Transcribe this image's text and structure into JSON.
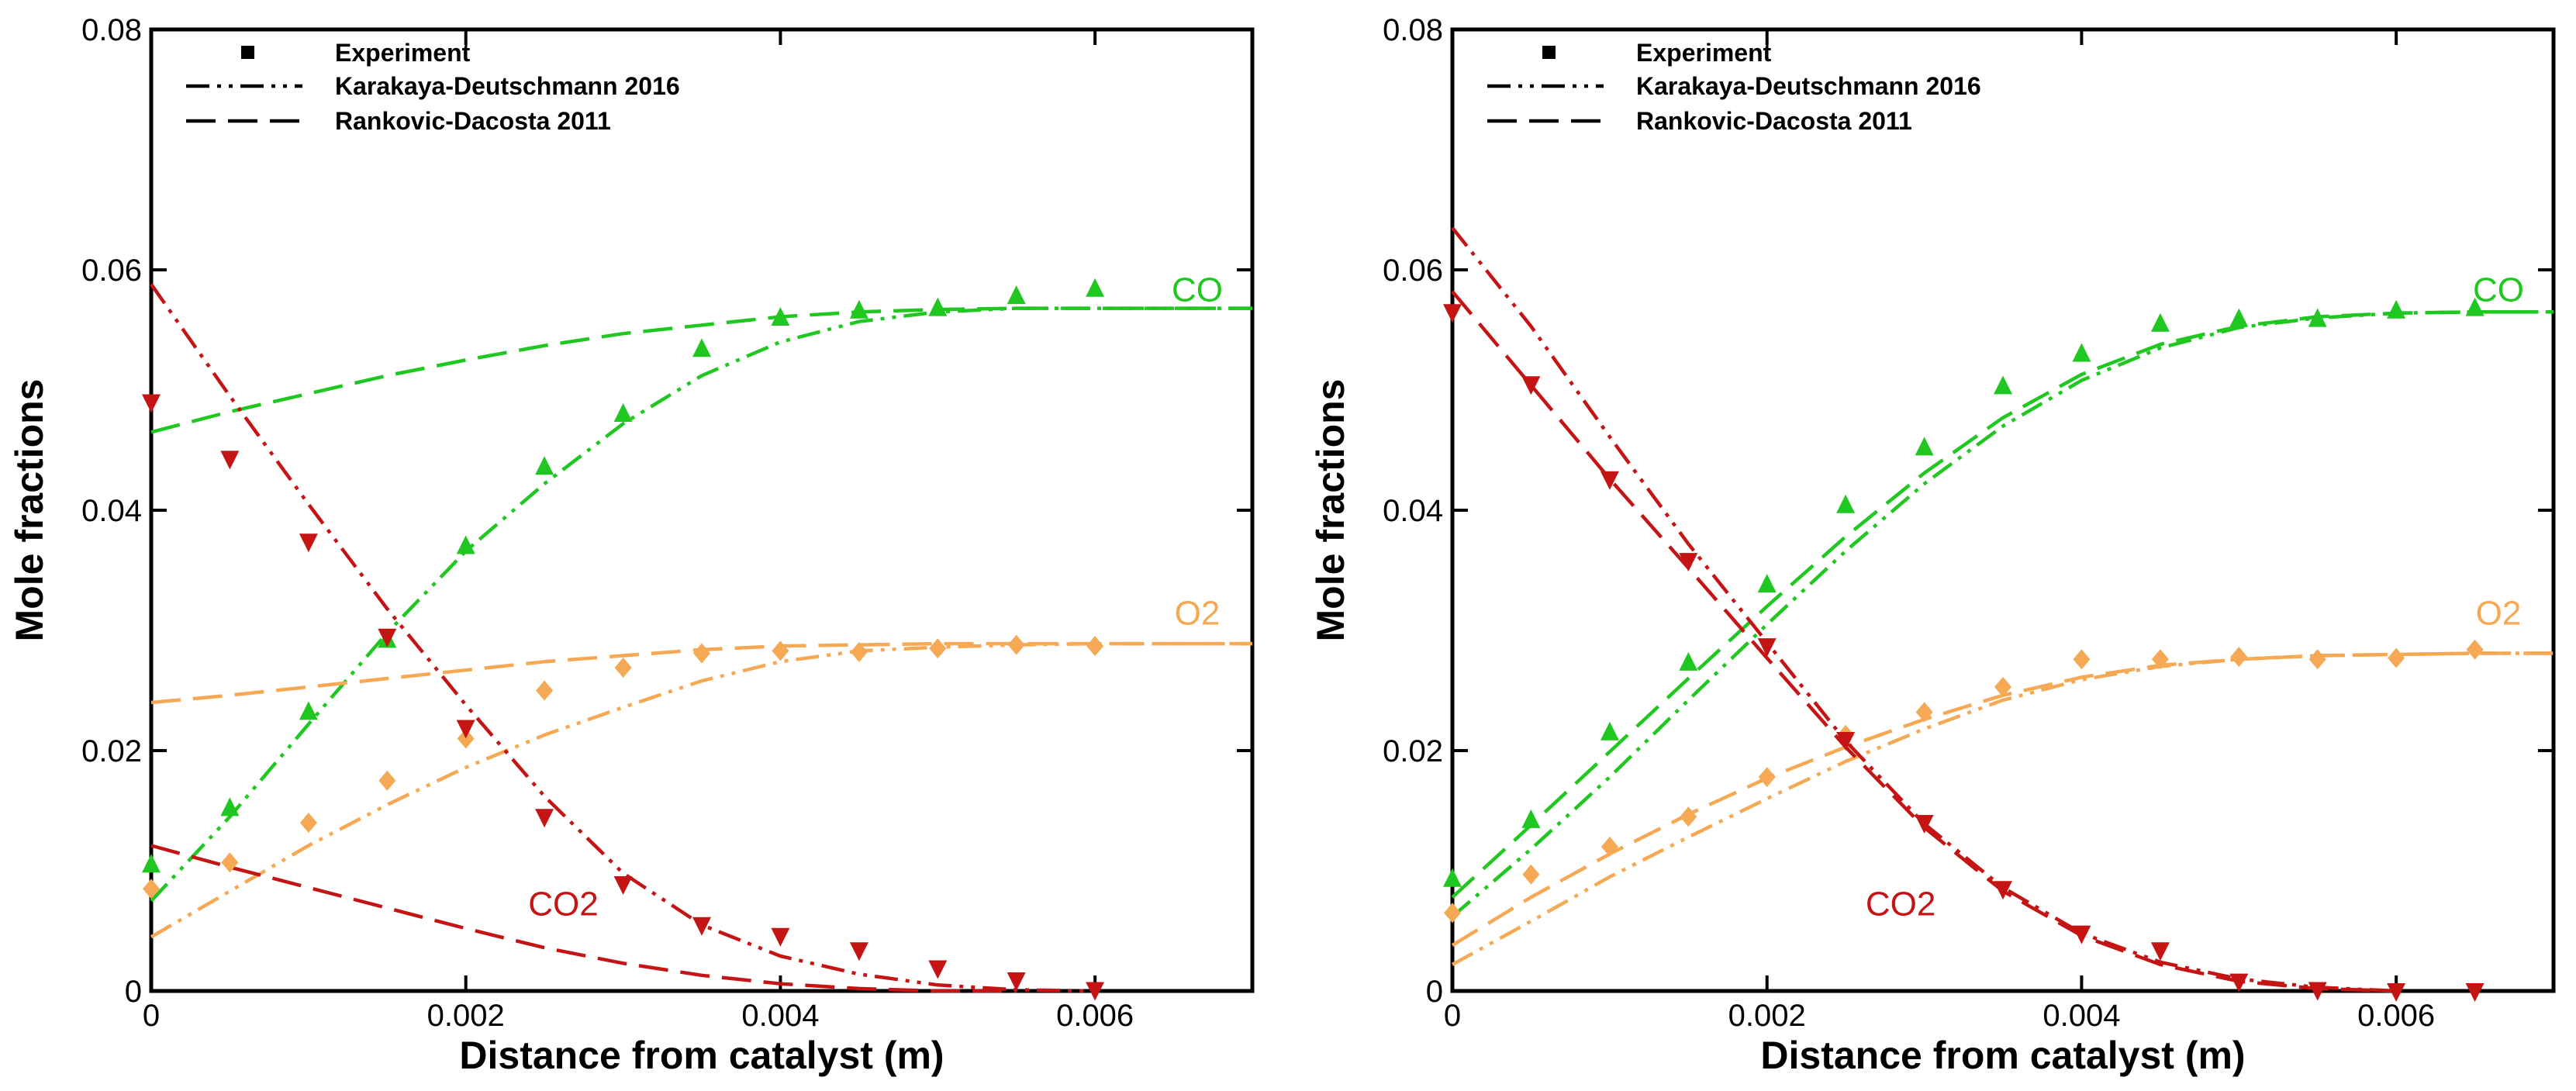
{
  "colors": {
    "co": "#21C721",
    "o2": "#F5A955",
    "co2": "#C41414",
    "axis": "#000000"
  },
  "chart_data": [
    {
      "type": "line",
      "panel": "left",
      "xlabel": "Distance from catalyst (m)",
      "ylabel": "Mole fractions",
      "xlim": [
        0,
        0.007
      ],
      "ylim": [
        0,
        0.08
      ],
      "xticks": [
        0,
        0.002,
        0.004,
        0.006
      ],
      "xtick_labels": [
        "0",
        "0.002",
        "0.004",
        "0.006"
      ],
      "yticks": [
        0,
        0.02,
        0.04,
        0.06,
        0.08
      ],
      "ytick_labels": [
        "0",
        "0.02",
        "0.04",
        "0.06",
        "0.08"
      ],
      "legend": {
        "position": "top-left",
        "entries": [
          {
            "label": "Experiment",
            "style": "marker"
          },
          {
            "label": "Karakaya-Deutschmann 2016",
            "style": "dash-dot-dot"
          },
          {
            "label": "Rankovic-Dacosta 2011",
            "style": "dash"
          }
        ]
      },
      "annotations": [
        {
          "text": "CO",
          "species": "co",
          "x": 0.00665,
          "y": 0.0574
        },
        {
          "text": "O2",
          "species": "o2",
          "x": 0.00665,
          "y": 0.0305
        },
        {
          "text": "CO2",
          "species": "co2",
          "x": 0.00262,
          "y": 0.0063
        }
      ],
      "series": [
        {
          "name": "CO Experiment",
          "species": "co",
          "kind": "experiment",
          "marker": "triangle-up",
          "x": [
            0,
            0.0005,
            0.001,
            0.0015,
            0.002,
            0.0025,
            0.003,
            0.0035,
            0.004,
            0.0045,
            0.005,
            0.0055,
            0.006
          ],
          "y": [
            0.0105,
            0.0152,
            0.0232,
            0.0292,
            0.037,
            0.0436,
            0.048,
            0.0534,
            0.056,
            0.0566,
            0.0568,
            0.0578,
            0.0584
          ]
        },
        {
          "name": "O2 Experiment",
          "species": "o2",
          "kind": "experiment",
          "marker": "diamond",
          "x": [
            0,
            0.0005,
            0.001,
            0.0015,
            0.002,
            0.0025,
            0.003,
            0.0035,
            0.004,
            0.0045,
            0.005,
            0.0055,
            0.006
          ],
          "y": [
            0.0085,
            0.0107,
            0.014,
            0.0175,
            0.021,
            0.025,
            0.0269,
            0.0281,
            0.0283,
            0.0282,
            0.0285,
            0.0288,
            0.0287
          ]
        },
        {
          "name": "CO2 Experiment",
          "species": "co2",
          "kind": "experiment",
          "marker": "triangle-down",
          "x": [
            0,
            0.0005,
            0.001,
            0.0015,
            0.002,
            0.0025,
            0.003,
            0.0035,
            0.004,
            0.0045,
            0.005,
            0.0055,
            0.006
          ],
          "y": [
            0.049,
            0.0443,
            0.0374,
            0.0295,
            0.0219,
            0.0145,
            0.0089,
            0.0055,
            0.0046,
            0.0034,
            0.0019,
            0.0009,
            0.0001
          ]
        },
        {
          "name": "CO Karakaya-Deutschmann 2016",
          "species": "co",
          "kind": "karakaya",
          "x": [
            0,
            0.0005,
            0.001,
            0.0015,
            0.002,
            0.0025,
            0.003,
            0.0035,
            0.004,
            0.0045,
            0.005,
            0.0055,
            0.006,
            0.0065,
            0.007
          ],
          "y": [
            0.0075,
            0.0145,
            0.0222,
            0.0298,
            0.0366,
            0.0422,
            0.0472,
            0.0512,
            0.054,
            0.0557,
            0.0565,
            0.0568,
            0.0568,
            0.0568,
            0.0568
          ]
        },
        {
          "name": "CO Rankovic-Dacosta 2011",
          "species": "co",
          "kind": "rankovic",
          "x": [
            0,
            0.0005,
            0.001,
            0.0015,
            0.002,
            0.0025,
            0.003,
            0.0035,
            0.004,
            0.0045,
            0.005,
            0.0055,
            0.006,
            0.0065,
            0.007
          ],
          "y": [
            0.0465,
            0.0482,
            0.0497,
            0.0512,
            0.0525,
            0.0537,
            0.0547,
            0.0554,
            0.0561,
            0.0565,
            0.0567,
            0.0568,
            0.0568,
            0.0568,
            0.0568
          ]
        },
        {
          "name": "O2 Karakaya-Deutschmann 2016",
          "species": "o2",
          "kind": "karakaya",
          "x": [
            0,
            0.0005,
            0.001,
            0.0015,
            0.002,
            0.0025,
            0.003,
            0.0035,
            0.004,
            0.0045,
            0.005,
            0.0055,
            0.006,
            0.0065,
            0.007
          ],
          "y": [
            0.0045,
            0.0083,
            0.0121,
            0.0155,
            0.0186,
            0.0213,
            0.0236,
            0.0258,
            0.0274,
            0.0283,
            0.0286,
            0.0288,
            0.0289,
            0.0289,
            0.0289
          ]
        },
        {
          "name": "O2 Rankovic-Dacosta 2011",
          "species": "o2",
          "kind": "rankovic",
          "x": [
            0,
            0.0005,
            0.001,
            0.0015,
            0.002,
            0.0025,
            0.003,
            0.0035,
            0.004,
            0.0045,
            0.005,
            0.0055,
            0.006,
            0.0065,
            0.007
          ],
          "y": [
            0.024,
            0.0246,
            0.0253,
            0.026,
            0.0267,
            0.0274,
            0.0279,
            0.0284,
            0.0287,
            0.0288,
            0.0289,
            0.0289,
            0.0289,
            0.0289,
            0.0289
          ]
        },
        {
          "name": "CO2 Karakaya-Deutschmann 2016",
          "species": "co2",
          "kind": "karakaya",
          "x": [
            0,
            0.0005,
            0.001,
            0.0015,
            0.002,
            0.0025,
            0.003,
            0.0035,
            0.004,
            0.0045,
            0.005,
            0.0055,
            0.006
          ],
          "y": [
            0.0588,
            0.0495,
            0.0405,
            0.0318,
            0.0238,
            0.0162,
            0.0098,
            0.0055,
            0.0029,
            0.0014,
            0.0005,
            0.0001,
            0.0
          ]
        },
        {
          "name": "CO2 Rankovic-Dacosta 2011",
          "species": "co2",
          "kind": "rankovic",
          "x": [
            0,
            0.0005,
            0.001,
            0.0015,
            0.002,
            0.0025,
            0.003,
            0.0035,
            0.004,
            0.0045,
            0.005,
            0.0055
          ],
          "y": [
            0.0121,
            0.0103,
            0.0086,
            0.0069,
            0.0052,
            0.0036,
            0.0023,
            0.0013,
            0.0006,
            0.0002,
            0.0,
            0.0
          ]
        }
      ]
    },
    {
      "type": "line",
      "panel": "right",
      "xlabel": "Distance from catalyst (m)",
      "ylabel": "Mole fractions",
      "xlim": [
        0,
        0.007
      ],
      "ylim": [
        0,
        0.08
      ],
      "xticks": [
        0,
        0.002,
        0.004,
        0.006
      ],
      "xtick_labels": [
        "0",
        "0.002",
        "0.004",
        "0.006"
      ],
      "yticks": [
        0,
        0.02,
        0.04,
        0.06,
        0.08
      ],
      "ytick_labels": [
        "0",
        "0.02",
        "0.04",
        "0.06",
        "0.08"
      ],
      "legend": {
        "position": "top-left",
        "entries": [
          {
            "label": "Experiment",
            "style": "marker"
          },
          {
            "label": "Karakaya-Deutschmann 2016",
            "style": "dash-dot-dot"
          },
          {
            "label": "Rankovic-Dacosta 2011",
            "style": "dash"
          }
        ]
      },
      "annotations": [
        {
          "text": "CO",
          "species": "co",
          "x": 0.00665,
          "y": 0.0574
        },
        {
          "text": "O2",
          "species": "o2",
          "x": 0.00665,
          "y": 0.0305
        },
        {
          "text": "CO2",
          "species": "co2",
          "x": 0.00285,
          "y": 0.0063
        }
      ],
      "series": [
        {
          "name": "CO Experiment",
          "species": "co",
          "kind": "experiment",
          "marker": "triangle-up",
          "x": [
            0,
            0.0005,
            0.001,
            0.0015,
            0.002,
            0.0025,
            0.003,
            0.0035,
            0.004,
            0.0045,
            0.005,
            0.0055,
            0.006,
            0.0065
          ],
          "y": [
            0.0093,
            0.0142,
            0.0215,
            0.0273,
            0.0338,
            0.0404,
            0.0452,
            0.0503,
            0.053,
            0.0555,
            0.0559,
            0.0559,
            0.0566,
            0.0568
          ]
        },
        {
          "name": "O2 Experiment",
          "species": "o2",
          "kind": "experiment",
          "marker": "diamond",
          "x": [
            0,
            0.0005,
            0.001,
            0.0015,
            0.002,
            0.0025,
            0.003,
            0.0035,
            0.004,
            0.0045,
            0.005,
            0.0055,
            0.006,
            0.0065
          ],
          "y": [
            0.0065,
            0.0097,
            0.012,
            0.0145,
            0.0178,
            0.0213,
            0.0232,
            0.0253,
            0.0276,
            0.0276,
            0.0278,
            0.0276,
            0.0277,
            0.0284
          ]
        },
        {
          "name": "CO2 Experiment",
          "species": "co2",
          "kind": "experiment",
          "marker": "triangle-down",
          "x": [
            0,
            0.0005,
            0.001,
            0.0015,
            0.002,
            0.0025,
            0.003,
            0.0035,
            0.004,
            0.0045,
            0.005,
            0.0055,
            0.006,
            0.0065
          ],
          "y": [
            0.0565,
            0.0505,
            0.0426,
            0.0358,
            0.0287,
            0.0209,
            0.014,
            0.0085,
            0.0048,
            0.0034,
            0.0008,
            0.0001,
            0.0,
            0.0
          ]
        },
        {
          "name": "CO Karakaya-Deutschmann 2016",
          "species": "co",
          "kind": "karakaya",
          "x": [
            0,
            0.0005,
            0.001,
            0.0015,
            0.002,
            0.0025,
            0.003,
            0.0035,
            0.004,
            0.0045,
            0.005,
            0.0055,
            0.006,
            0.0065,
            0.007
          ],
          "y": [
            0.0062,
            0.0118,
            0.0178,
            0.0242,
            0.0305,
            0.0366,
            0.0422,
            0.047,
            0.0508,
            0.0535,
            0.0552,
            0.056,
            0.0564,
            0.0565,
            0.0565
          ]
        },
        {
          "name": "CO Rankovic-Dacosta 2011",
          "species": "co",
          "kind": "rankovic",
          "x": [
            0,
            0.0005,
            0.001,
            0.0015,
            0.002,
            0.0025,
            0.003,
            0.0035,
            0.004,
            0.0045,
            0.005,
            0.0055,
            0.006,
            0.0065,
            0.007
          ],
          "y": [
            0.0078,
            0.0138,
            0.0199,
            0.026,
            0.032,
            0.0378,
            0.0431,
            0.0477,
            0.0513,
            0.0538,
            0.0553,
            0.0561,
            0.0564,
            0.0565,
            0.0565
          ]
        },
        {
          "name": "O2 Karakaya-Deutschmann 2016",
          "species": "o2",
          "kind": "karakaya",
          "x": [
            0,
            0.0005,
            0.001,
            0.0015,
            0.002,
            0.0025,
            0.003,
            0.0035,
            0.004,
            0.0045,
            0.005,
            0.0055,
            0.006,
            0.0065,
            0.007
          ],
          "y": [
            0.0022,
            0.0058,
            0.0095,
            0.0128,
            0.016,
            0.0191,
            0.0218,
            0.0242,
            0.0259,
            0.027,
            0.0276,
            0.0279,
            0.028,
            0.0281,
            0.0281
          ]
        },
        {
          "name": "O2 Rankovic-Dacosta 2011",
          "species": "o2",
          "kind": "rankovic",
          "x": [
            0,
            0.0005,
            0.001,
            0.0015,
            0.002,
            0.0025,
            0.003,
            0.0035,
            0.004,
            0.0045,
            0.005,
            0.0055,
            0.006,
            0.0065,
            0.007
          ],
          "y": [
            0.0038,
            0.0078,
            0.0114,
            0.0147,
            0.0177,
            0.0203,
            0.0226,
            0.0246,
            0.0261,
            0.0271,
            0.0276,
            0.0279,
            0.028,
            0.0281,
            0.0281
          ]
        },
        {
          "name": "CO2 Karakaya-Deutschmann 2016",
          "species": "co2",
          "kind": "karakaya",
          "x": [
            0,
            0.0005,
            0.001,
            0.0015,
            0.002,
            0.0025,
            0.003,
            0.0035,
            0.004,
            0.0045,
            0.005,
            0.0055,
            0.006
          ],
          "y": [
            0.0635,
            0.0553,
            0.0461,
            0.0372,
            0.029,
            0.0208,
            0.0139,
            0.0086,
            0.0048,
            0.0024,
            0.001,
            0.0003,
            0.0
          ]
        },
        {
          "name": "CO2 Rankovic-Dacosta 2011",
          "species": "co2",
          "kind": "rankovic",
          "x": [
            0,
            0.0005,
            0.001,
            0.0015,
            0.002,
            0.0025,
            0.003,
            0.0035,
            0.004,
            0.0045,
            0.005,
            0.0055,
            0.006
          ],
          "y": [
            0.0582,
            0.0504,
            0.0426,
            0.0352,
            0.0277,
            0.0203,
            0.0136,
            0.0083,
            0.0046,
            0.0022,
            0.0008,
            0.0002,
            0.0
          ]
        }
      ]
    }
  ]
}
